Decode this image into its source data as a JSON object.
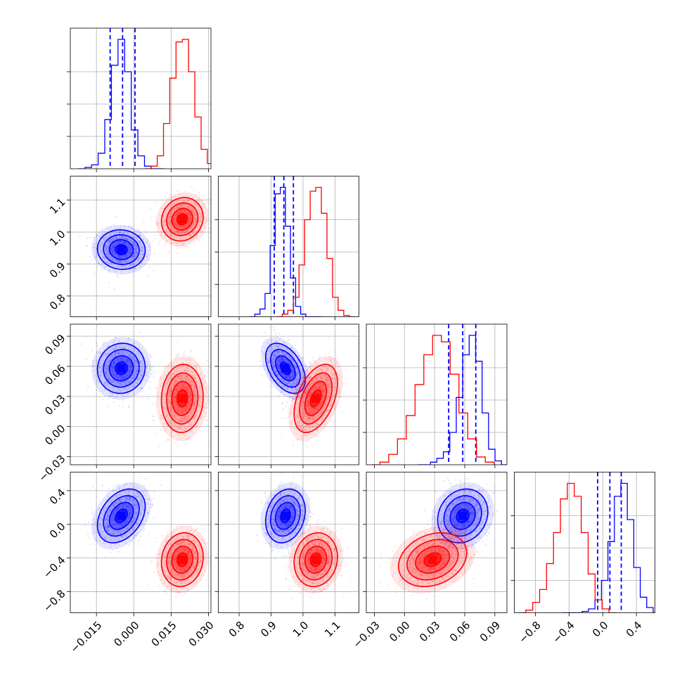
{
  "chart_data": {
    "type": "corner",
    "title": "",
    "grid": true,
    "colors": {
      "blue": "#0000ff",
      "red": "#ff0000"
    },
    "series": [
      {
        "color": "#0000ff",
        "mean": [
          -0.005,
          0.945,
          0.058,
          0.1
        ],
        "sd": [
          0.0048,
          0.031,
          0.0125,
          0.16
        ],
        "rho": {
          "0-1": -0.05,
          "0-2": 0.05,
          "0-3": 0.35,
          "1-2": -0.45,
          "1-3": 0.2,
          "2-3": 0.15
        },
        "quantile_lines": [
          [
            -0.0095,
            -0.0045,
            0.0005
          ],
          [
            0.91,
            0.94,
            0.97
          ],
          [
            0.044,
            0.058,
            0.071
          ],
          [
            -0.06,
            0.085,
            0.22
          ]
        ],
        "histograms": [
          [
            0.0,
            0.01,
            0.03,
            0.12,
            0.38,
            0.8,
            1.0,
            0.75,
            0.3,
            0.1,
            0.02,
            0.0,
            0.0
          ],
          [
            0.0,
            0.02,
            0.06,
            0.18,
            0.55,
            0.95,
            1.0,
            0.7,
            0.3,
            0.08,
            0.02,
            0.0,
            0.0,
            0.0
          ],
          [
            0.0,
            0.0,
            0.02,
            0.05,
            0.1,
            0.25,
            0.52,
            0.85,
            1.0,
            0.8,
            0.4,
            0.12,
            0.03,
            0.0
          ],
          [
            0.0,
            0.0,
            0.0,
            0.01,
            0.03,
            0.1,
            0.25,
            0.55,
            0.9,
            1.0,
            0.72,
            0.35,
            0.12,
            0.04,
            0.0
          ]
        ]
      },
      {
        "color": "#ff0000",
        "mean": [
          0.0195,
          1.04,
          0.028,
          -0.42
        ],
        "sd": [
          0.0042,
          0.034,
          0.017,
          0.16
        ],
        "rho": {
          "0-1": 0.1,
          "0-2": 0.05,
          "0-3": 0.1,
          "1-2": 0.45,
          "1-3": 0.1,
          "2-3": 0.25
        },
        "quantile_lines": [],
        "histograms": [
          [
            0.0,
            0.02,
            0.1,
            0.35,
            0.7,
            0.98,
            1.0,
            0.75,
            0.4,
            0.15,
            0.04,
            0.01
          ],
          [
            0.0,
            0.02,
            0.05,
            0.15,
            0.4,
            0.75,
            0.97,
            1.0,
            0.8,
            0.45,
            0.15,
            0.05,
            0.01,
            0.0
          ],
          [
            0.0,
            0.02,
            0.08,
            0.2,
            0.38,
            0.62,
            0.85,
            1.0,
            0.95,
            0.7,
            0.4,
            0.2,
            0.06,
            0.02
          ],
          [
            0.0,
            0.02,
            0.08,
            0.18,
            0.38,
            0.62,
            0.88,
            1.0,
            0.9,
            0.62,
            0.3,
            0.1,
            0.03,
            0.0
          ]
        ]
      }
    ],
    "params": [
      {
        "range": [
          -0.0255,
          0.031
        ],
        "ticks": [
          -0.015,
          0.0,
          0.015,
          0.03
        ],
        "tick_labels": [
          "−0.015",
          "0.000",
          "0.015",
          "0.030"
        ]
      },
      {
        "range": [
          0.735,
          1.175
        ],
        "ticks": [
          0.8,
          0.9,
          1.0,
          1.1
        ],
        "tick_labels": [
          "0.8",
          "0.9",
          "1.0",
          "1.1"
        ]
      },
      {
        "range": [
          -0.038,
          0.102
        ],
        "ticks": [
          -0.03,
          0.0,
          0.03,
          0.06,
          0.09
        ],
        "tick_labels": [
          "−0.03",
          "0.00",
          "0.03",
          "0.06",
          "0.09"
        ]
      },
      {
        "range": [
          -1.05,
          0.62
        ],
        "ticks": [
          -0.8,
          -0.4,
          0.0,
          0.4
        ],
        "tick_labels": [
          "−0.8",
          "−0.4",
          "0.0",
          "0.4"
        ]
      }
    ]
  }
}
